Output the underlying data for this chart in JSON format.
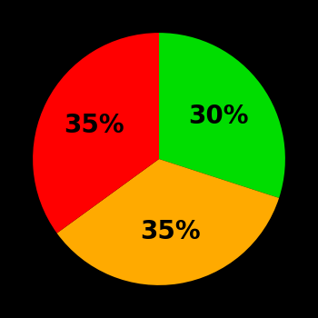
{
  "slices": [
    {
      "label": "30%",
      "value": 30,
      "color": "#00dd00"
    },
    {
      "label": "35%",
      "value": 35,
      "color": "#ffaa00"
    },
    {
      "label": "35%",
      "value": 35,
      "color": "#ff0000"
    }
  ],
  "startangle": 90,
  "background_color": "#000000",
  "text_color": "#000000",
  "font_size": 20,
  "font_weight": "bold",
  "label_r": 0.58
}
